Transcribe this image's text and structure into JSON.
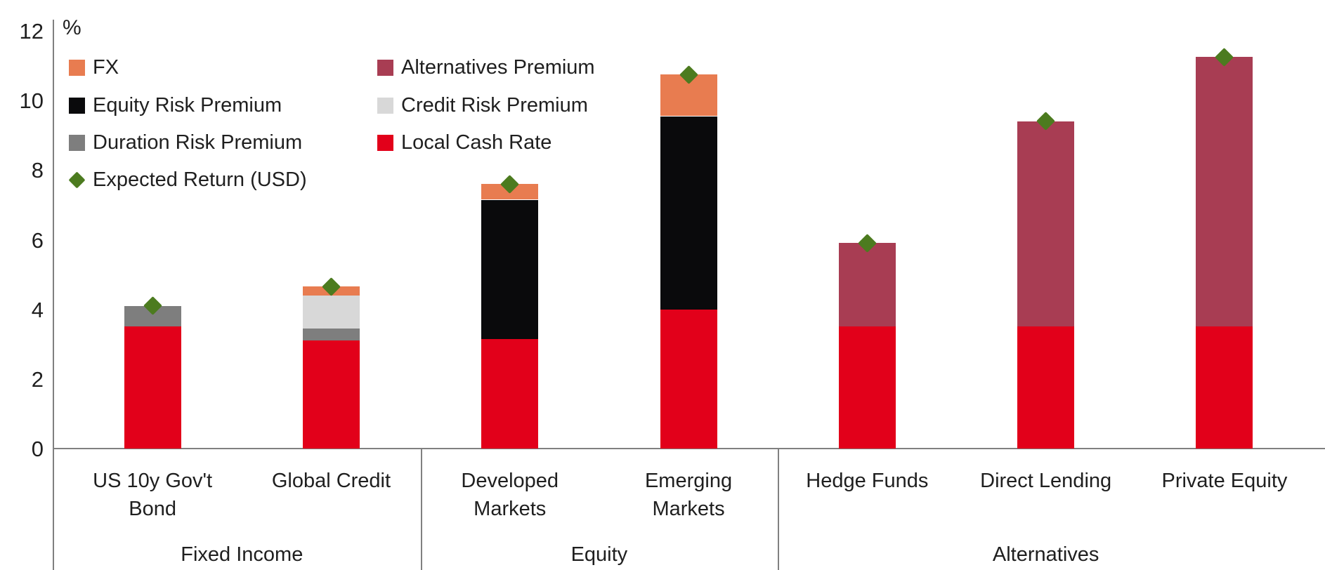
{
  "chart_data": {
    "type": "bar",
    "stacked": true,
    "unit_label": "%",
    "ylim": [
      0,
      12
    ],
    "yticks": [
      0,
      2,
      4,
      6,
      8,
      10,
      12
    ],
    "grid": false,
    "legend_position": "top-left two-column inside plot",
    "categories": [
      {
        "lines": [
          "US 10y Gov't",
          "Bond"
        ],
        "group": "Fixed Income"
      },
      {
        "lines": [
          "Global Credit"
        ],
        "group": "Fixed Income"
      },
      {
        "lines": [
          "Developed",
          "Markets"
        ],
        "group": "Equity"
      },
      {
        "lines": [
          "Emerging",
          "Markets"
        ],
        "group": "Equity"
      },
      {
        "lines": [
          "Hedge Funds"
        ],
        "group": "Alternatives"
      },
      {
        "lines": [
          "Direct Lending"
        ],
        "group": "Alternatives"
      },
      {
        "lines": [
          "Private Equity"
        ],
        "group": "Alternatives"
      }
    ],
    "groups": [
      {
        "label": "Fixed Income",
        "count": 2
      },
      {
        "label": "Equity",
        "count": 2
      },
      {
        "label": "Alternatives",
        "count": 3
      }
    ],
    "series": [
      {
        "name": "Local Cash Rate",
        "color_key": "local_cash_rate",
        "values": [
          3.5,
          3.1,
          3.15,
          4.0,
          3.5,
          3.5,
          3.5
        ]
      },
      {
        "name": "Duration Risk Premium",
        "color_key": "duration_risk",
        "values": [
          0.6,
          0.35,
          0,
          0,
          0,
          0,
          0
        ]
      },
      {
        "name": "Credit Risk Premium",
        "color_key": "credit_risk",
        "values": [
          0,
          0.95,
          0,
          0,
          0,
          0,
          0
        ]
      },
      {
        "name": "Equity Risk Premium",
        "color_key": "equity_risk",
        "values": [
          0,
          0,
          4.0,
          5.55,
          0,
          0,
          0
        ]
      },
      {
        "name": "Alternatives Premium",
        "color_key": "alternatives",
        "values": [
          0,
          0,
          0,
          0,
          2.4,
          5.9,
          7.75
        ]
      },
      {
        "name": "FX",
        "color_key": "fx",
        "values": [
          0,
          0.25,
          0.45,
          1.2,
          0,
          0,
          0
        ]
      }
    ],
    "markers": {
      "name": "Expected Return (USD)",
      "color_key": "expected_return",
      "values": [
        4.1,
        4.65,
        7.6,
        10.75,
        5.9,
        9.4,
        11.25
      ]
    }
  },
  "legend": {
    "columns": [
      [
        {
          "label": "FX",
          "color_key": "fx",
          "shape": "square"
        },
        {
          "label": "Equity Risk Premium",
          "color_key": "equity_risk",
          "shape": "square"
        },
        {
          "label": "Duration Risk Premium",
          "color_key": "duration_risk",
          "shape": "square"
        },
        {
          "label": "Expected Return (USD)",
          "color_key": "expected_return",
          "shape": "diamond"
        }
      ],
      [
        {
          "label": "Alternatives Premium",
          "color_key": "alternatives",
          "shape": "square"
        },
        {
          "label": "Credit Risk Premium",
          "color_key": "credit_risk",
          "shape": "square"
        },
        {
          "label": "Local Cash Rate",
          "color_key": "local_cash_rate",
          "shape": "square"
        }
      ]
    ]
  },
  "colors": {
    "fx": "#E87C50",
    "equity_risk": "#0A0A0C",
    "duration_risk": "#7E7E7E",
    "credit_risk": "#D8D8D8",
    "alternatives": "#A83D53",
    "local_cash_rate": "#E2001A",
    "expected_return": "#4C7B1F",
    "axis": "#808080",
    "text": "#1F1F1F"
  }
}
